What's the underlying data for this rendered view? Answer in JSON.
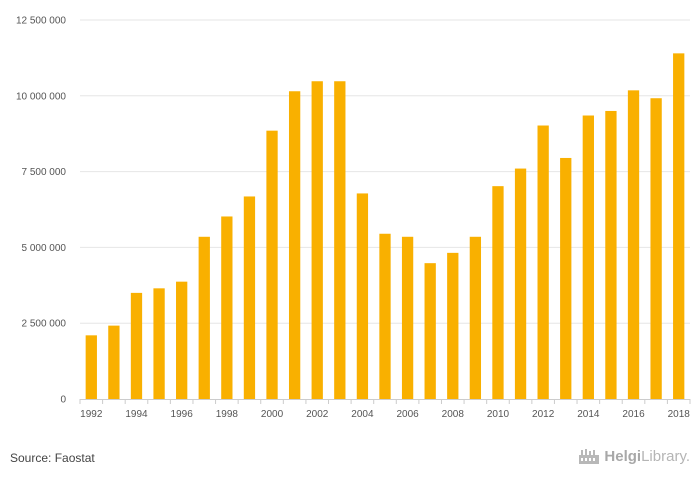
{
  "chart_data": {
    "type": "bar",
    "categories": [
      "1992",
      "1993",
      "1994",
      "1995",
      "1996",
      "1997",
      "1998",
      "1999",
      "2000",
      "2001",
      "2002",
      "2003",
      "2004",
      "2005",
      "2006",
      "2007",
      "2008",
      "2009",
      "2010",
      "2011",
      "2012",
      "2013",
      "2014",
      "2015",
      "2016",
      "2017",
      "2018"
    ],
    "values": [
      2100000,
      2420000,
      3500000,
      3650000,
      3870000,
      5350000,
      6020000,
      6680000,
      8850000,
      10150000,
      10480000,
      10480000,
      6780000,
      5450000,
      5350000,
      4480000,
      4820000,
      5350000,
      7020000,
      7600000,
      9020000,
      7950000,
      9350000,
      9500000,
      10180000,
      9920000,
      11400000
    ],
    "x_tick_labels": [
      "1992",
      "1994",
      "1996",
      "1998",
      "2000",
      "2002",
      "2004",
      "2006",
      "2008",
      "2010",
      "2012",
      "2014",
      "2016",
      "2018"
    ],
    "y_tick_labels": [
      "0",
      "2 500 000",
      "5 000 000",
      "7 500 000",
      "10 000 000",
      "12 500 000"
    ],
    "y_ticks": [
      0,
      2500000,
      5000000,
      7500000,
      10000000,
      12500000
    ],
    "ylim": [
      0,
      12500000
    ],
    "title": "",
    "xlabel": "",
    "ylabel": "",
    "grid": true,
    "legend": "none",
    "bar_color": "#F9B000"
  },
  "footer": {
    "source": "Source: Faostat",
    "brand_bold": "Helgi",
    "brand_light": "Library."
  },
  "colors": {
    "grid": "#e6e6e6",
    "axis": "#cccccc",
    "brand": "#b0b0b0"
  }
}
